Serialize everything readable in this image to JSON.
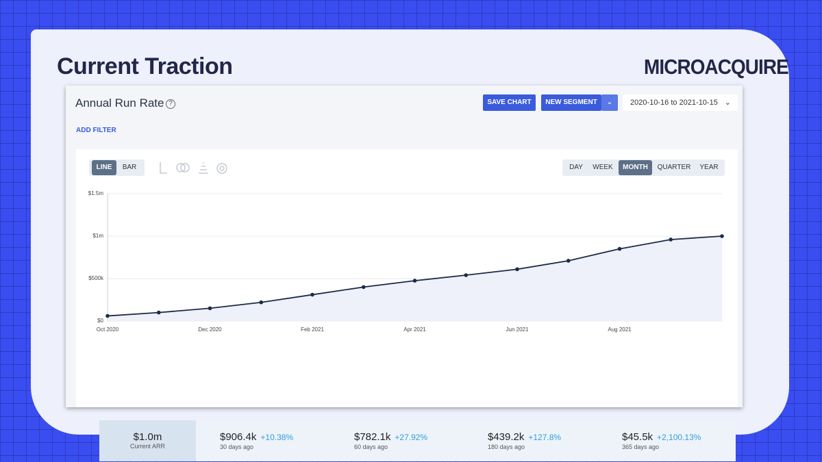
{
  "header": {
    "title": "Current Traction",
    "brand": "MICROACQUIRE"
  },
  "panel": {
    "title": "Annual Run Rate",
    "help": "?",
    "save_button": "SAVE CHART",
    "segment_button": "NEW SEGMENT",
    "date_range": "2020-10-16 to 2021-10-15",
    "add_filter": "ADD FILTER",
    "chart_types": [
      "LINE",
      "BAR"
    ],
    "periods": [
      "DAY",
      "WEEK",
      "MONTH",
      "QUARTER",
      "YEAR"
    ]
  },
  "chart_data": {
    "type": "line",
    "color": "#1c2b45",
    "fill": "#eef0fa",
    "categories": [
      "Oct 2020",
      null,
      "Dec 2020",
      null,
      "Feb 2021",
      null,
      "Apr 2021",
      null,
      "Jun 2021",
      null,
      "Aug 2021",
      null,
      null
    ],
    "values": [
      60000,
      100000,
      150000,
      220000,
      310000,
      400000,
      475000,
      540000,
      610000,
      710000,
      850000,
      960000,
      1000000
    ],
    "ylim": [
      0,
      1500000
    ],
    "yticks": [
      {
        "value": 0,
        "label": "$0"
      },
      {
        "value": 500000,
        "label": "$500k"
      },
      {
        "value": 1000000,
        "label": "$1m"
      },
      {
        "value": 1500000,
        "label": "$1.5m"
      }
    ],
    "grid": true
  },
  "stats": [
    {
      "value": "$1.0m",
      "label": "Current ARR"
    },
    {
      "value": "$906.4k",
      "change": "+10.38%",
      "label": "30 days ago"
    },
    {
      "value": "$782.1k",
      "change": "+27.92%",
      "label": "60 days ago"
    },
    {
      "value": "$439.2k",
      "change": "+127.8%",
      "label": "180 days ago"
    },
    {
      "value": "$45.5k",
      "change": "+2,100.13%",
      "label": "365 days ago"
    }
  ]
}
